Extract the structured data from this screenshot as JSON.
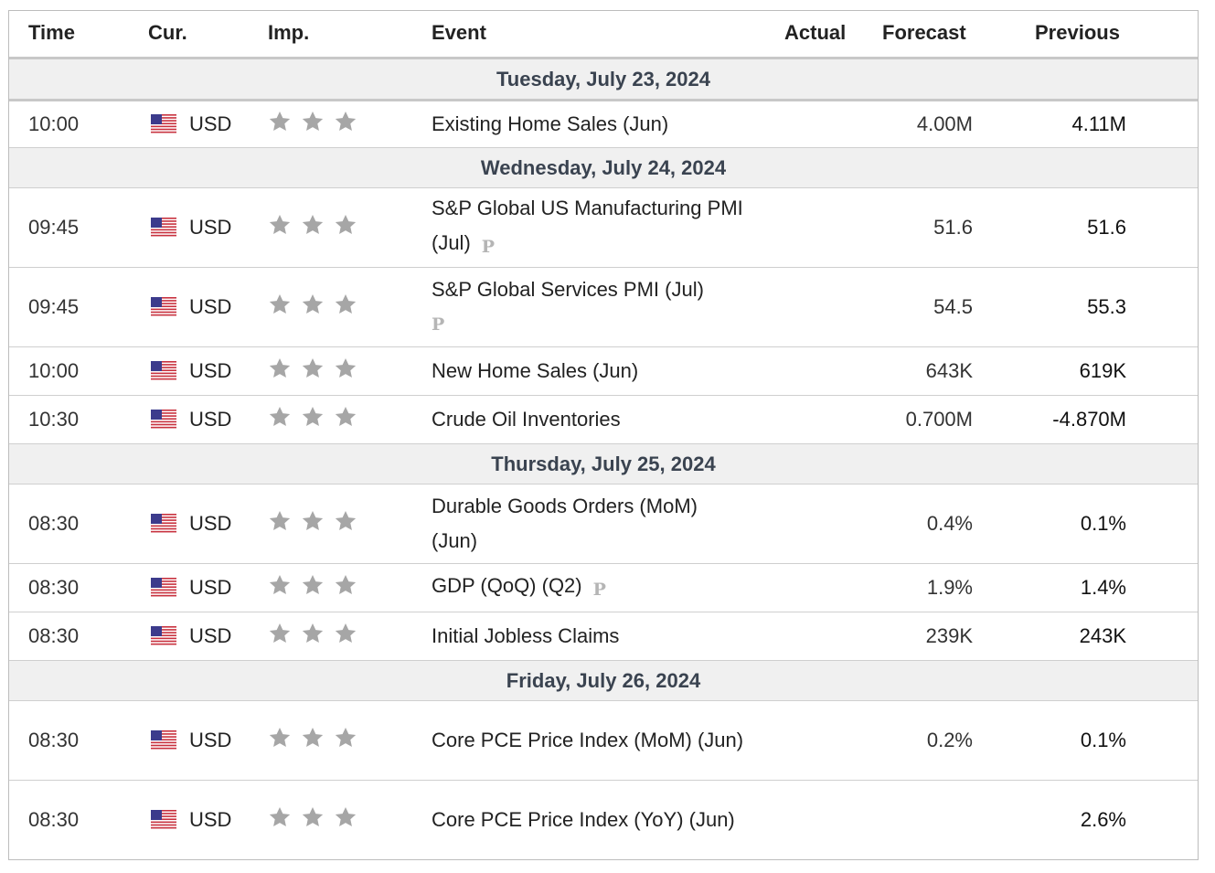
{
  "headers": {
    "time": "Time",
    "currency": "Cur.",
    "importance": "Imp.",
    "event": "Event",
    "actual": "Actual",
    "forecast": "Forecast",
    "previous": "Previous"
  },
  "importance_stars": 3,
  "preliminary_marker": "P",
  "days": [
    {
      "date": "Tuesday, July 23, 2024",
      "events": [
        {
          "time": "10:00",
          "currency": "USD",
          "event": "Existing Home Sales (Jun)",
          "actual": "",
          "forecast": "4.00M",
          "previous": "4.11M",
          "preliminary": false
        }
      ]
    },
    {
      "date": "Wednesday, July 24, 2024",
      "events": [
        {
          "time": "09:45",
          "currency": "USD",
          "event": "S&P Global US Manufacturing PMI (Jul)",
          "actual": "",
          "forecast": "51.6",
          "previous": "51.6",
          "preliminary": true
        },
        {
          "time": "09:45",
          "currency": "USD",
          "event": "S&P Global Services PMI (Jul)",
          "actual": "",
          "forecast": "54.5",
          "previous": "55.3",
          "preliminary": true
        },
        {
          "time": "10:00",
          "currency": "USD",
          "event": "New Home Sales (Jun)",
          "actual": "",
          "forecast": "643K",
          "previous": "619K",
          "preliminary": false
        },
        {
          "time": "10:30",
          "currency": "USD",
          "event": "Crude Oil Inventories",
          "actual": "",
          "forecast": "0.700M",
          "previous": "-4.870M",
          "preliminary": false
        }
      ]
    },
    {
      "date": "Thursday, July 25, 2024",
      "events": [
        {
          "time": "08:30",
          "currency": "USD",
          "event": "Durable Goods Orders (MoM) (Jun)",
          "actual": "",
          "forecast": "0.4%",
          "previous": "0.1%",
          "preliminary": false
        },
        {
          "time": "08:30",
          "currency": "USD",
          "event": "GDP (QoQ) (Q2)",
          "actual": "",
          "forecast": "1.9%",
          "previous": "1.4%",
          "preliminary": true
        },
        {
          "time": "08:30",
          "currency": "USD",
          "event": "Initial Jobless Claims",
          "actual": "",
          "forecast": "239K",
          "previous": "243K",
          "preliminary": false
        }
      ]
    },
    {
      "date": "Friday, July 26, 2024",
      "events": [
        {
          "time": "08:30",
          "currency": "USD",
          "event": "Core PCE Price Index (MoM) (Jun)",
          "actual": "",
          "forecast": "0.2%",
          "previous": "0.1%",
          "preliminary": false
        },
        {
          "time": "08:30",
          "currency": "USD",
          "event": "Core PCE Price Index (YoY) (Jun)",
          "actual": "",
          "forecast": "",
          "previous": "2.6%",
          "preliminary": false
        }
      ]
    }
  ],
  "colors": {
    "star": "#a6a6a6",
    "day_bg": "#f0f0f0",
    "day_text": "#3a4350",
    "flag_red": "#c8313e",
    "flag_blue": "#3c3b8c"
  }
}
